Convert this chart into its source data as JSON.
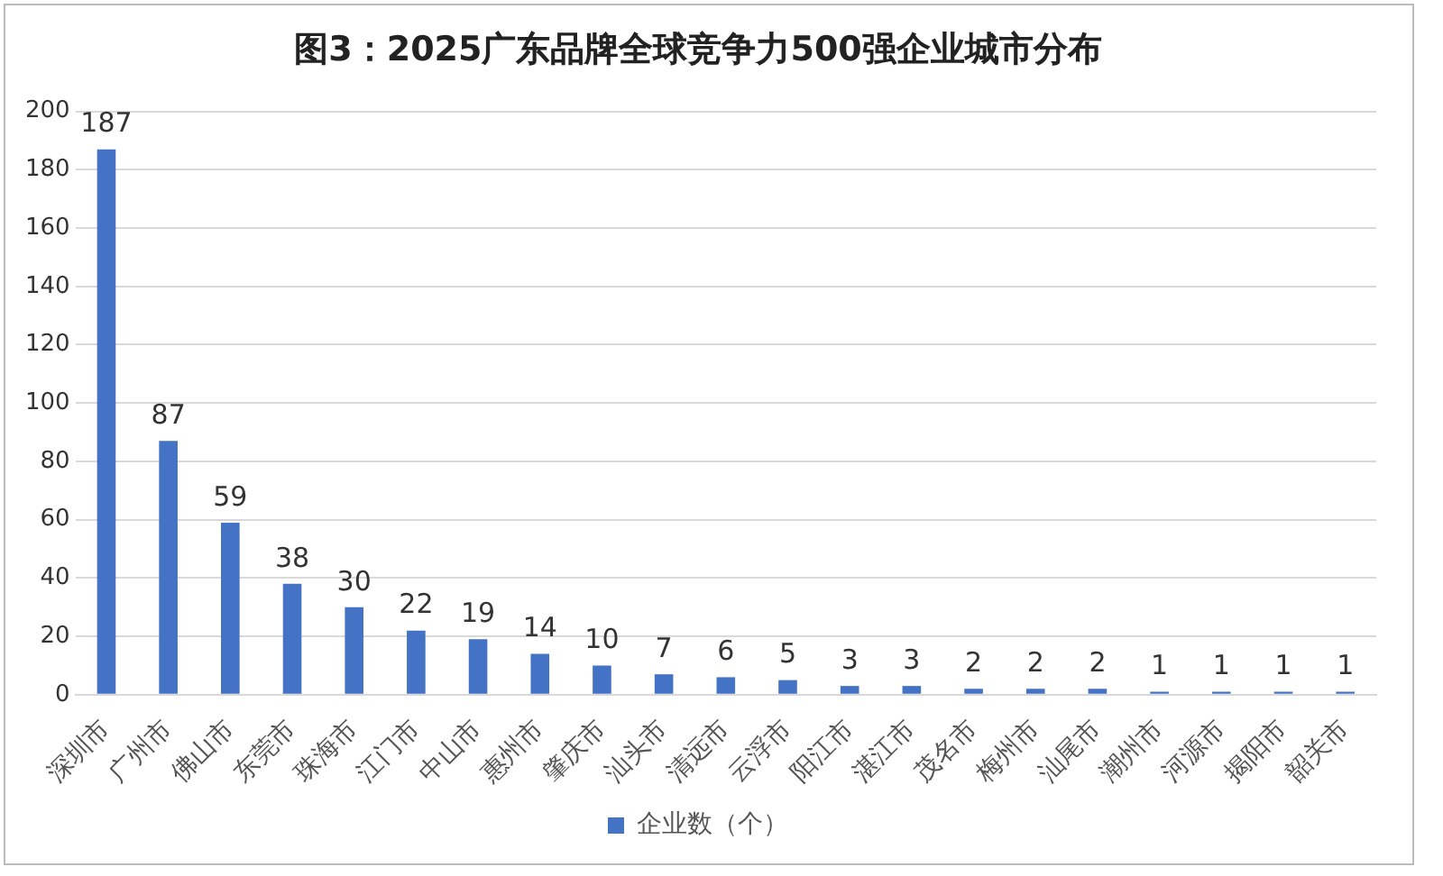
{
  "chart_data": {
    "type": "bar",
    "title": "图3：2025广东品牌全球竞争力500强企业城市分布",
    "categories": [
      "深圳市",
      "广州市",
      "佛山市",
      "东莞市",
      "珠海市",
      "江门市",
      "中山市",
      "惠州市",
      "肇庆市",
      "汕头市",
      "清远市",
      "云浮市",
      "阳江市",
      "湛江市",
      "茂名市",
      "梅州市",
      "汕尾市",
      "潮州市",
      "河源市",
      "揭阳市",
      "韶关市"
    ],
    "series": [
      {
        "name": "企业数（个）",
        "color": "#4472c4",
        "values": [
          187,
          87,
          59,
          38,
          30,
          22,
          19,
          14,
          10,
          7,
          6,
          5,
          3,
          3,
          2,
          2,
          2,
          1,
          1,
          1,
          1
        ]
      }
    ],
    "ylim": [
      0,
      200
    ],
    "yticks": [
      0,
      20,
      40,
      60,
      80,
      100,
      120,
      140,
      160,
      180,
      200
    ],
    "grid": "y",
    "legend": "bottom",
    "data_labels": true
  }
}
